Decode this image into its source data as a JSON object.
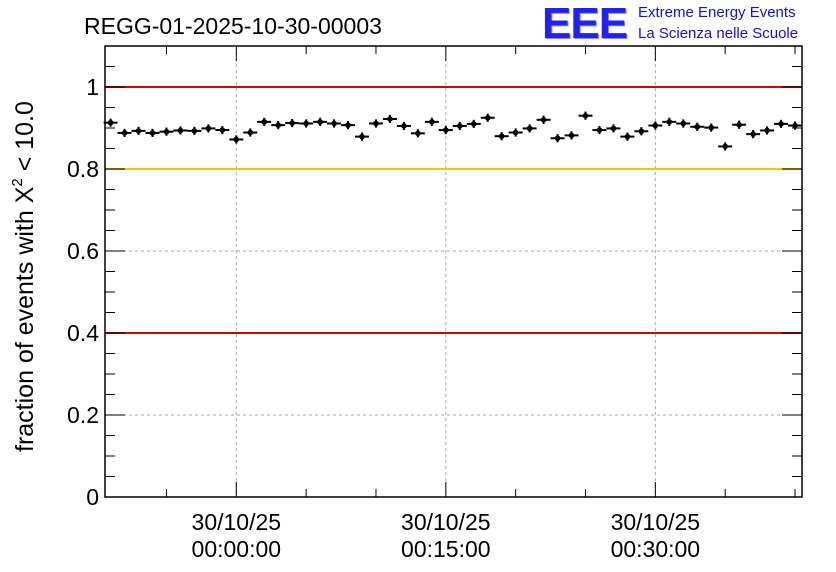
{
  "chart_data": {
    "type": "scatter",
    "title": "REGG-01-2025-10-30-00003",
    "ylabel": "fraction of events with X² < 10.0",
    "ylabel_main": "fraction of events with X",
    "ylabel_sup": "2",
    "ylabel_tail": " < 10.0",
    "xlabel": "",
    "ylim": [
      0,
      1.1
    ],
    "xlim_minutes": [
      -9.4,
      40.5
    ],
    "grid": true,
    "y_ticks": [
      0,
      0.2,
      0.4,
      0.6,
      0.8,
      1
    ],
    "y_tick_labels": [
      "0",
      "0.2",
      "0.4",
      "0.6",
      "0.8",
      "1"
    ],
    "x_ticks": [
      {
        "minutes": 0,
        "date": "30/10/25",
        "time": "00:00:00"
      },
      {
        "minutes": 15,
        "date": "30/10/25",
        "time": "00:15:00"
      },
      {
        "minutes": 30,
        "date": "30/10/25",
        "time": "00:30:00"
      }
    ],
    "threshold_lines": [
      {
        "value": 1.0,
        "color": "#dd0000"
      },
      {
        "value": 0.8,
        "color": "#ffc000"
      },
      {
        "value": 0.4,
        "color": "#dd0000"
      }
    ],
    "series": [
      {
        "name": "fraction",
        "color": "#000000",
        "x_minutes": [
          -9.0,
          -8.0,
          -7.0,
          -6.0,
          -5.0,
          -4.0,
          -3.0,
          -2.0,
          -1.0,
          0.0,
          1.0,
          2.0,
          3.0,
          4.0,
          5.0,
          6.0,
          7.0,
          8.0,
          9.0,
          10.0,
          11.0,
          12.0,
          13.0,
          14.0,
          15.0,
          16.0,
          17.0,
          18.0,
          19.0,
          20.0,
          21.0,
          22.0,
          23.0,
          24.0,
          25.0,
          26.0,
          27.0,
          28.0,
          29.0,
          30.0,
          31.0,
          32.0,
          33.0,
          34.0,
          35.0,
          36.0,
          37.0,
          38.0,
          39.0,
          40.0
        ],
        "y": [
          0.913,
          0.888,
          0.893,
          0.888,
          0.891,
          0.894,
          0.893,
          0.899,
          0.895,
          0.872,
          0.889,
          0.915,
          0.907,
          0.912,
          0.911,
          0.915,
          0.911,
          0.907,
          0.879,
          0.911,
          0.922,
          0.905,
          0.887,
          0.915,
          0.895,
          0.905,
          0.91,
          0.925,
          0.88,
          0.889,
          0.899,
          0.92,
          0.875,
          0.882,
          0.93,
          0.895,
          0.899,
          0.879,
          0.892,
          0.906,
          0.915,
          0.911,
          0.903,
          0.901,
          0.855,
          0.908,
          0.885,
          0.894,
          0.91,
          0.906
        ],
        "y_err": 0.01,
        "x_err_minutes": 0.5
      }
    ]
  },
  "logo": {
    "mark": "EEE",
    "line1": "Extreme Energy Events",
    "line2": "La Scienza nelle Scuole"
  },
  "colors": {
    "grid": "#aaaaaa",
    "axis": "#000000",
    "logo": "#2222ee"
  }
}
